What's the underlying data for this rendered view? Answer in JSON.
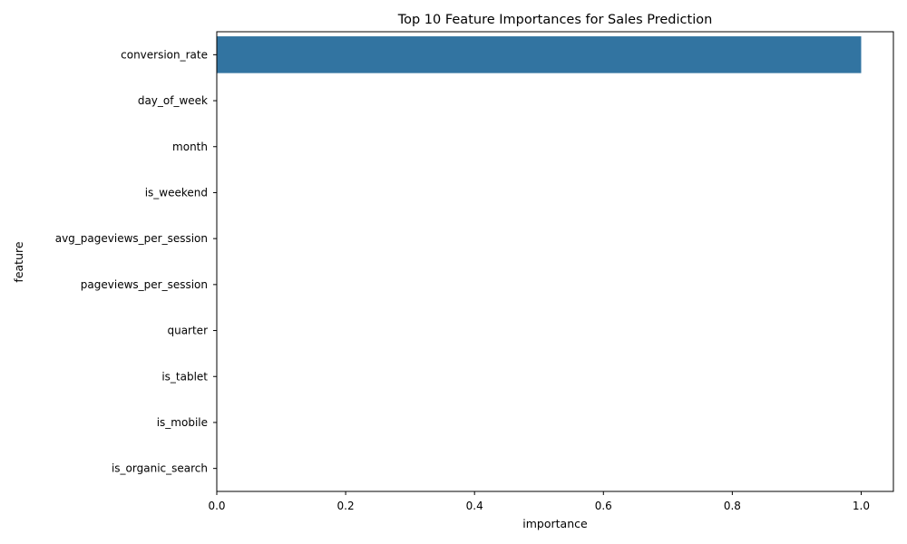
{
  "chart_data": {
    "type": "bar",
    "orientation": "horizontal",
    "title": "Top 10 Feature Importances for Sales Prediction",
    "xlabel": "importance",
    "ylabel": "feature",
    "categories": [
      "conversion_rate",
      "day_of_week",
      "month",
      "is_weekend",
      "avg_pageviews_per_session",
      "pageviews_per_session",
      "quarter",
      "is_tablet",
      "is_mobile",
      "is_organic_search"
    ],
    "values": [
      1.0,
      0,
      0,
      0,
      0,
      0,
      0,
      0,
      0,
      0
    ],
    "xlim": [
      0,
      1.05
    ],
    "xticks": [
      0.0,
      0.2,
      0.4,
      0.6,
      0.8,
      1.0
    ],
    "xtick_labels": [
      "0.0",
      "0.2",
      "0.4",
      "0.6",
      "0.8",
      "1.0"
    ],
    "grid": false,
    "bar_color": "#3274a1"
  }
}
